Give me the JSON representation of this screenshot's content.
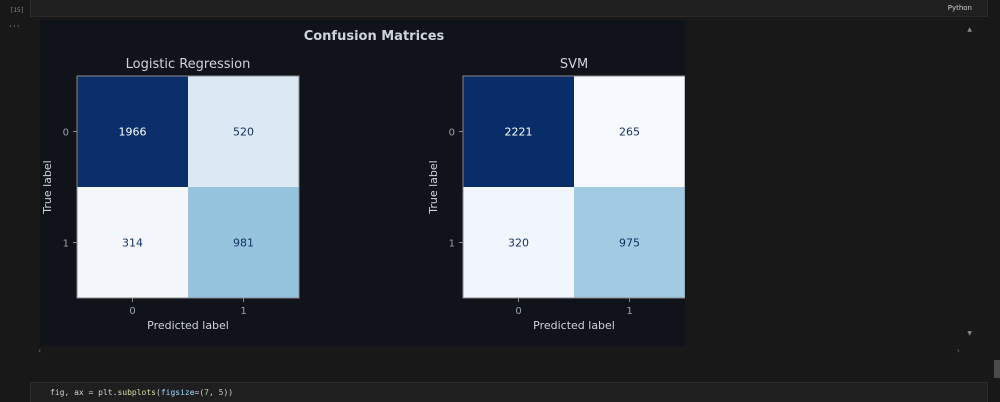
{
  "cell": {
    "exec_count": "[15]",
    "language": "Python",
    "more_icon": "ellipsis-icon"
  },
  "figure": {
    "suptitle": "Confusion Matrices",
    "colors": {
      "background": "#10131a",
      "text": "#cfd3da",
      "cell_border": "#888888"
    }
  },
  "chart_data": [
    {
      "type": "heatmap",
      "title": "Logistic Regression",
      "xlabel": "Predicted label",
      "ylabel": "True label",
      "x_ticks": [
        "0",
        "1"
      ],
      "y_ticks": [
        "0",
        "1"
      ],
      "values": [
        [
          1966,
          520
        ],
        [
          314,
          981
        ]
      ],
      "cell_colors": [
        [
          "#0b2f6b",
          "#dce8f4"
        ],
        [
          "#f4f8fd",
          "#96c4df"
        ]
      ],
      "text_colors": [
        [
          "#ffffff",
          "#10305f"
        ],
        [
          "#10305f",
          "#10305f"
        ]
      ]
    },
    {
      "type": "heatmap",
      "title": "SVM",
      "xlabel": "Predicted label",
      "ylabel": "True label",
      "x_ticks": [
        "0",
        "1"
      ],
      "y_ticks": [
        "0",
        "1"
      ],
      "values": [
        [
          2221,
          265
        ],
        [
          320,
          975
        ]
      ],
      "cell_colors": [
        [
          "#082d69",
          "#f6f9fe"
        ],
        [
          "#f1f6fc",
          "#a0cbe2"
        ]
      ],
      "text_colors": [
        [
          "#ffffff",
          "#10305f"
        ],
        [
          "#10305f",
          "#10305f"
        ]
      ]
    }
  ],
  "code": {
    "lhs": "fig, ax = ",
    "module": "plt",
    "dot": ".",
    "fn": "subplots",
    "open": "(",
    "param": "figsize",
    "eq": "=(",
    "n1": "7",
    "comma": ", ",
    "n2": "5",
    "close": "))"
  },
  "scroll": {
    "up_icon": "▲",
    "down_icon": "▼",
    "left_icon": "‹",
    "right_icon": "›"
  }
}
